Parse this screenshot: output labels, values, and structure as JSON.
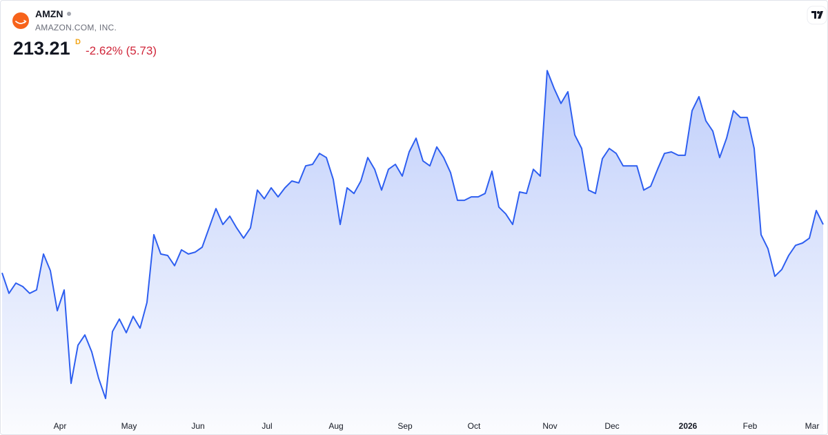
{
  "header": {
    "ticker": "AMZN",
    "company": "AMAZON.COM, INC.",
    "price": 213.21,
    "interval": "D",
    "change": "-2.62% (5.73)"
  },
  "chart_data": {
    "type": "area",
    "color": "#2d5ef0",
    "categories": [
      null,
      null,
      null,
      null,
      null,
      null,
      null,
      null,
      "Apr",
      null,
      null,
      null,
      null,
      null,
      null,
      null,
      null,
      null,
      "May",
      null,
      null,
      null,
      null,
      null,
      null,
      null,
      null,
      null,
      "Jun",
      null,
      null,
      null,
      null,
      null,
      null,
      null,
      null,
      null,
      "Jul",
      null,
      null,
      null,
      null,
      null,
      null,
      null,
      null,
      null,
      "Aug",
      null,
      null,
      null,
      null,
      null,
      null,
      null,
      null,
      null,
      "Sep",
      null,
      null,
      null,
      null,
      null,
      null,
      null,
      null,
      null,
      "Oct",
      null,
      null,
      null,
      null,
      null,
      null,
      null,
      null,
      null,
      null,
      "Nov",
      null,
      null,
      null,
      null,
      null,
      null,
      null,
      null,
      "Dec",
      null,
      null,
      null,
      null,
      null,
      null,
      null,
      null,
      null,
      null,
      "2026",
      null,
      null,
      null,
      null,
      null,
      null,
      null,
      null,
      "Feb",
      null,
      null,
      null,
      null,
      null,
      null,
      null,
      null,
      "Mar",
      null,
      null
    ],
    "values": [
      200.4,
      195.0,
      197.7,
      196.8,
      195.0,
      195.9,
      205.4,
      201.0,
      190.4,
      195.9,
      171.2,
      181.3,
      184.0,
      179.5,
      172.5,
      167.2,
      184.9,
      188.2,
      184.6,
      188.9,
      185.8,
      192.6,
      210.5,
      205.4,
      205.0,
      202.3,
      206.5,
      205.4,
      205.9,
      207.2,
      212.3,
      217.4,
      213.2,
      215.4,
      212.3,
      209.6,
      212.3,
      222.3,
      220.0,
      222.9,
      220.5,
      222.9,
      224.7,
      224.2,
      228.7,
      229.1,
      232.0,
      230.9,
      225.1,
      213.2,
      222.9,
      221.4,
      224.7,
      230.9,
      227.8,
      222.3,
      227.8,
      229.1,
      226.0,
      232.4,
      236.0,
      230.0,
      228.7,
      233.7,
      230.9,
      226.9,
      219.6,
      219.6,
      220.5,
      220.5,
      221.4,
      227.3,
      217.8,
      216.0,
      213.2,
      221.8,
      221.4,
      227.8,
      226.0,
      253.9,
      249.2,
      245.2,
      248.3,
      236.9,
      233.3,
      222.3,
      221.4,
      230.6,
      233.3,
      232.0,
      228.7,
      228.7,
      228.7,
      222.3,
      223.3,
      227.8,
      232.0,
      232.4,
      231.5,
      231.5,
      243.3,
      247.0,
      240.6,
      237.9,
      230.9,
      236.0,
      243.3,
      241.5,
      241.5,
      233.3,
      210.5,
      206.8,
      199.5,
      201.3,
      205.0,
      207.7,
      208.3,
      209.6,
      216.9,
      213.21
    ],
    "ylim": [
      158,
      270
    ]
  }
}
